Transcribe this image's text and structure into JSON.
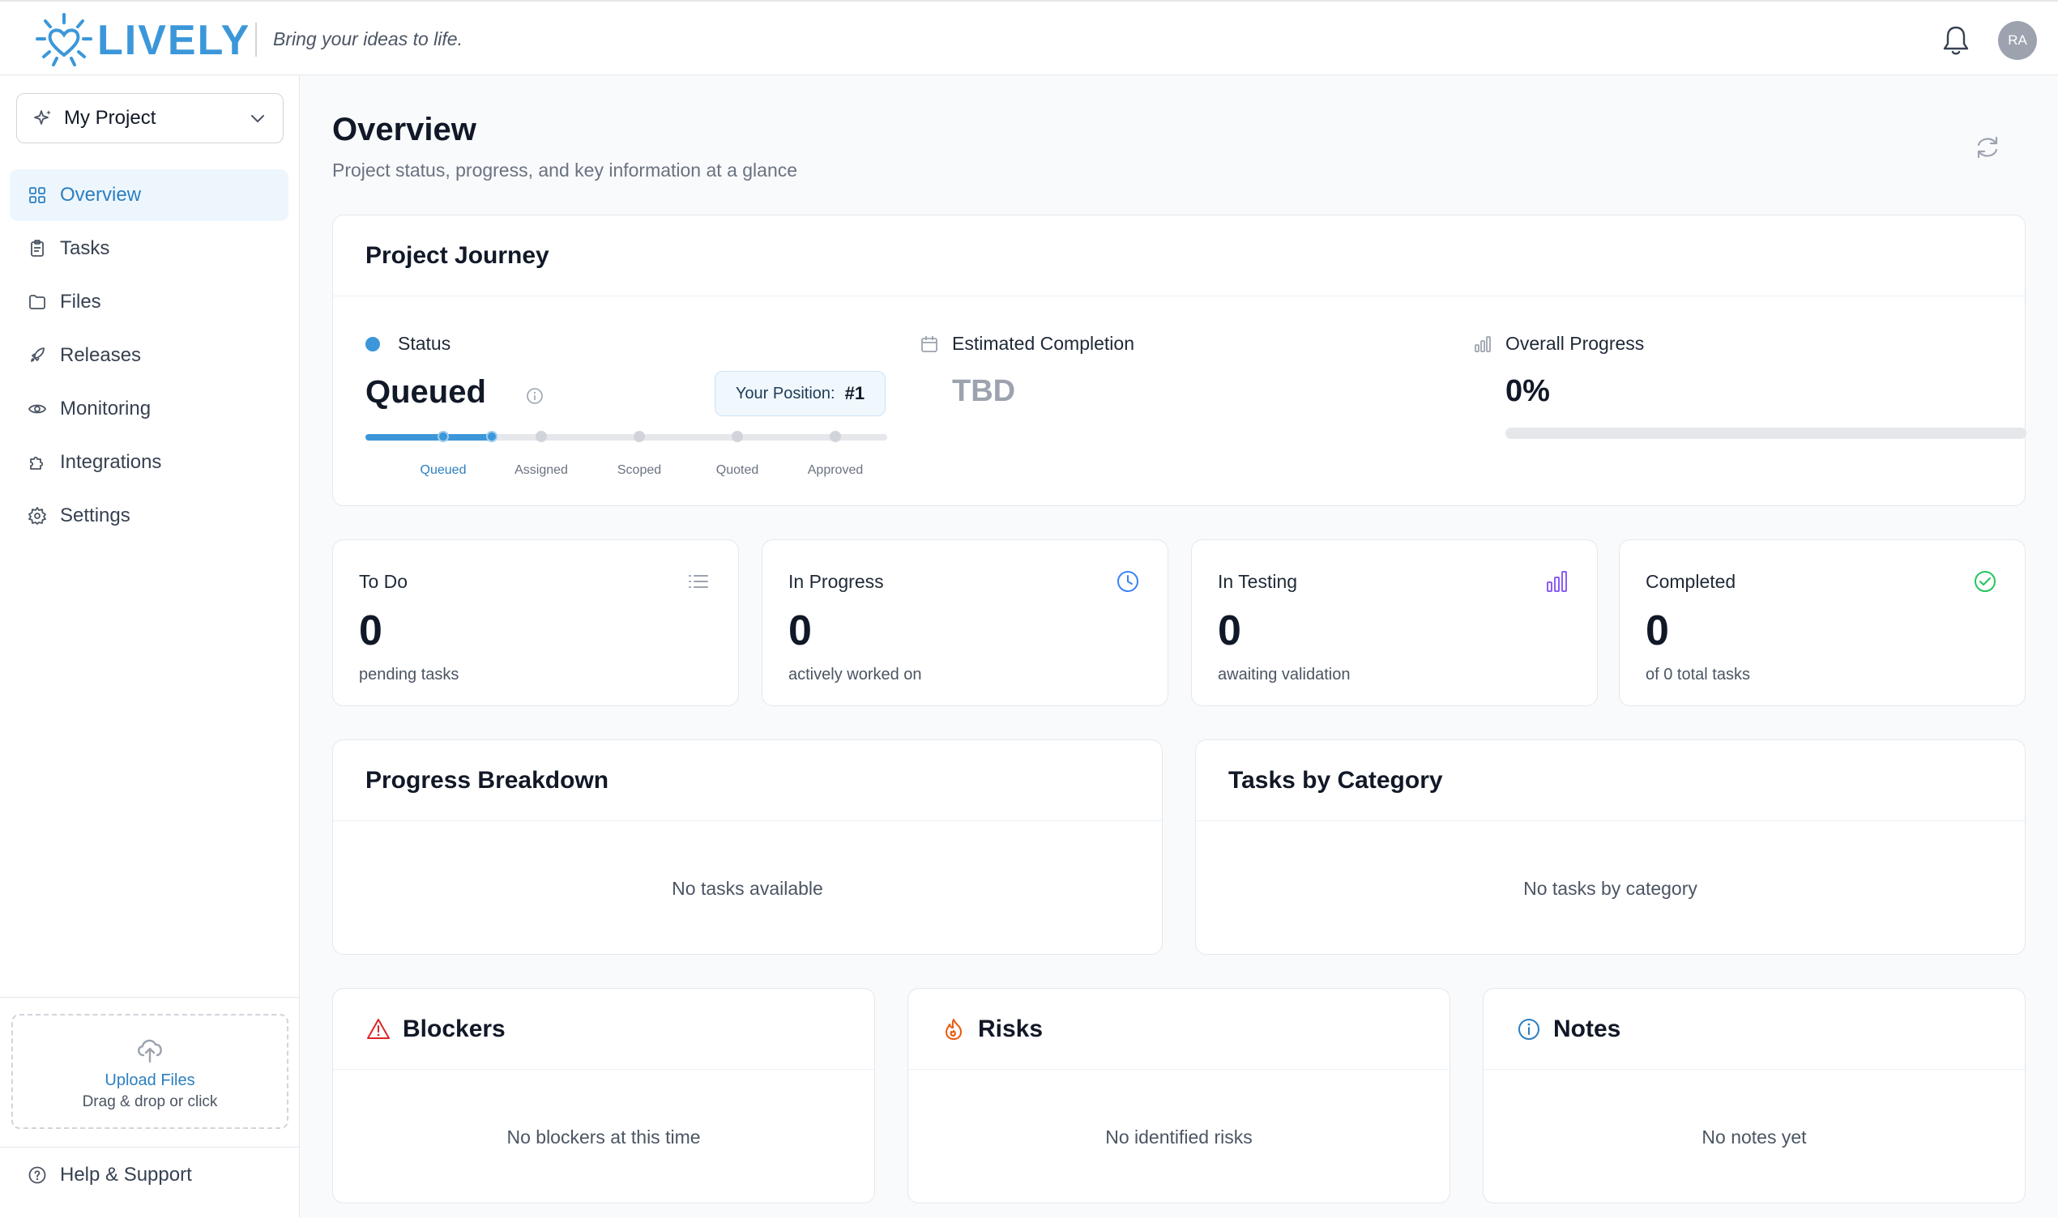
{
  "header": {
    "brand": "LIVELY",
    "tagline": "Bring your ideas to life.",
    "avatar_initials": "RA",
    "brand_color": "#3b97d9"
  },
  "sidebar": {
    "project_label": "My Project",
    "items": [
      {
        "label": "Overview",
        "icon": "grid-icon",
        "active": true
      },
      {
        "label": "Tasks",
        "icon": "clipboard-icon"
      },
      {
        "label": "Files",
        "icon": "folder-icon"
      },
      {
        "label": "Releases",
        "icon": "rocket-icon"
      },
      {
        "label": "Monitoring",
        "icon": "eye-icon"
      },
      {
        "label": "Integrations",
        "icon": "puzzle-icon"
      },
      {
        "label": "Settings",
        "icon": "gear-icon"
      }
    ],
    "upload": {
      "title": "Upload Files",
      "subtitle": "Drag & drop or click"
    },
    "help_label": "Help & Support"
  },
  "page": {
    "title": "Overview",
    "subtitle": "Project status, progress, and key information at a glance"
  },
  "journey": {
    "title": "Project Journey",
    "status_label": "Status",
    "status_value": "Queued",
    "position_label": "Your Position:",
    "position_value": "#1",
    "steps": [
      "Queued",
      "Assigned",
      "Scoped",
      "Quoted",
      "Approved"
    ],
    "current_step": 0,
    "completion_label": "Estimated Completion",
    "completion_value": "TBD",
    "progress_label": "Overall Progress",
    "progress_value": "0%",
    "progress_fraction": 0
  },
  "stats": [
    {
      "label": "To Do",
      "value": "0",
      "sub": "pending tasks",
      "icon": "list-icon",
      "color": "#9ca3af"
    },
    {
      "label": "In Progress",
      "value": "0",
      "sub": "actively worked on",
      "icon": "clock-icon",
      "color": "#3b82f6"
    },
    {
      "label": "In Testing",
      "value": "0",
      "sub": "awaiting validation",
      "icon": "bar-chart-icon",
      "color": "#8b5cf6"
    },
    {
      "label": "Completed",
      "value": "0",
      "sub": "of 0 total tasks",
      "icon": "check-circle-icon",
      "color": "#22c55e"
    }
  ],
  "breakdown": {
    "title": "Progress Breakdown",
    "empty": "No tasks available"
  },
  "category": {
    "title": "Tasks by Category",
    "empty": "No tasks by category"
  },
  "blockers": {
    "title": "Blockers",
    "empty": "No blockers at this time",
    "color": "#dc2626"
  },
  "risks": {
    "title": "Risks",
    "empty": "No identified risks",
    "color": "#ea580c"
  },
  "notes": {
    "title": "Notes",
    "empty": "No notes yet",
    "color": "#2b7fc0"
  }
}
